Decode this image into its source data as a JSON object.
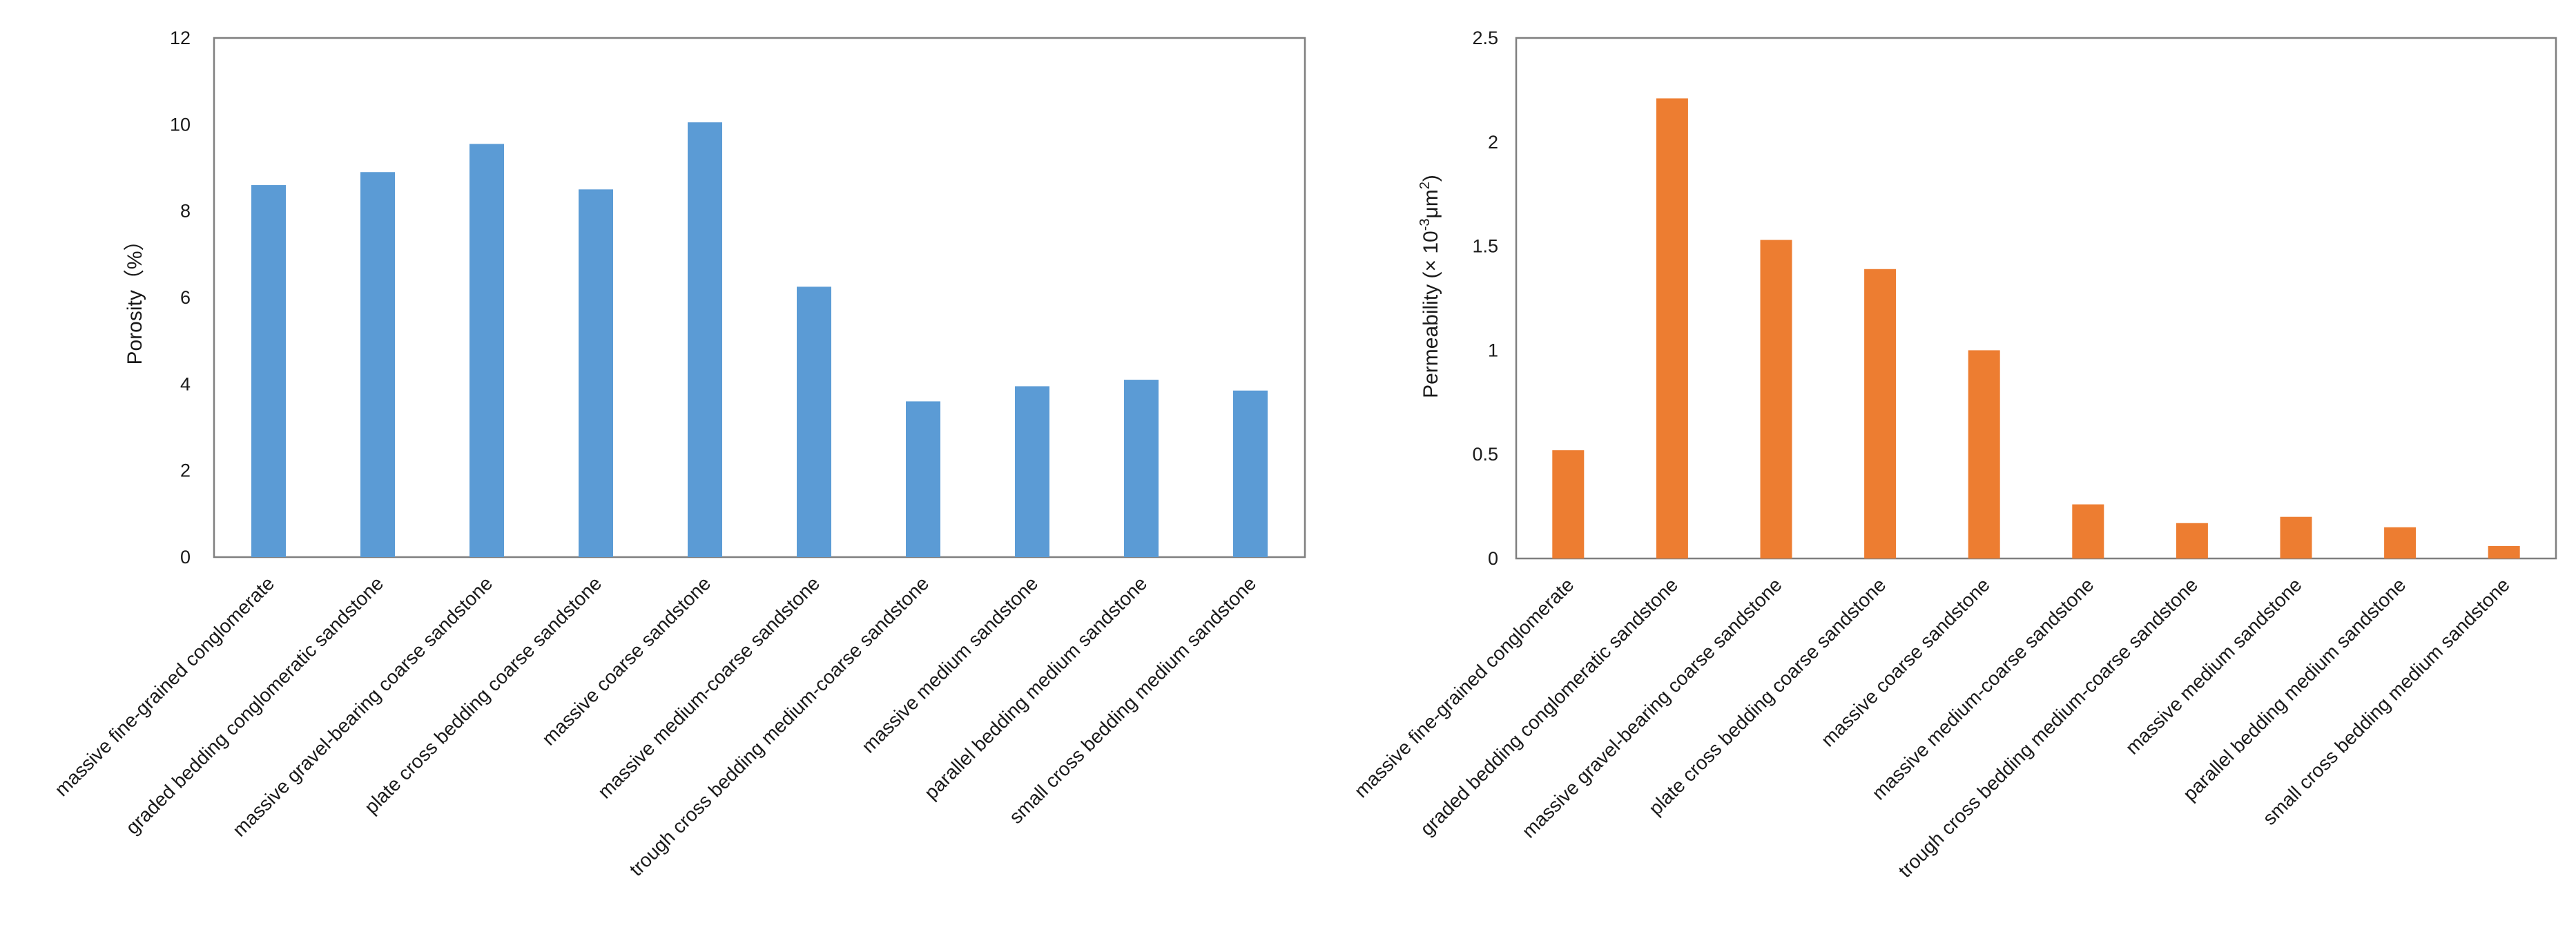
{
  "chart_data": [
    {
      "type": "bar",
      "title": "",
      "xlabel": "",
      "ylabel": "Porosity（%）",
      "ylim": [
        0,
        12
      ],
      "yticks": [
        0,
        2,
        4,
        6,
        8,
        10,
        12
      ],
      "grid": false,
      "color": "#5b9bd5",
      "categories": [
        "massive fine-grained conglomerate",
        "graded bedding conglomeratic sandstone",
        "massive gravel-bearing coarse sandstone",
        "plate cross bedding coarse sandstone",
        "massive coarse sandstone",
        "massive medium-coarse sandstone",
        "trough cross bedding medium-coarse sandstone",
        "massive medium sandstone",
        "parallel bedding medium sandstone",
        "small cross bedding medium sandstone"
      ],
      "values": [
        8.6,
        8.9,
        9.55,
        8.5,
        10.05,
        6.25,
        3.6,
        3.95,
        4.1,
        3.85
      ]
    },
    {
      "type": "bar",
      "title": "",
      "xlabel": "",
      "ylabel": "Permeability (× 10",
      "ylabel_sup1": "-3",
      "ylabel_mid": "μm",
      "ylabel_sup2": "2",
      "ylabel_end": ")",
      "ylim": [
        0,
        2.5
      ],
      "yticks": [
        0,
        0.5,
        1,
        1.5,
        2,
        2.5
      ],
      "grid": false,
      "color": "#ed7d31",
      "categories": [
        "massive fine-grained conglomerate",
        "graded bedding conglomeratic sandstone",
        "massive gravel-bearing coarse sandstone",
        "plate cross bedding coarse sandstone",
        "massive coarse sandstone",
        "massive medium-coarse sandstone",
        "trough cross bedding medium-coarse sandstone",
        "massive medium sandstone",
        "parallel bedding medium sandstone",
        "small cross bedding medium sandstone"
      ],
      "values": [
        0.52,
        2.21,
        1.53,
        1.39,
        1.0,
        0.26,
        0.17,
        0.2,
        0.15,
        0.06
      ]
    }
  ]
}
